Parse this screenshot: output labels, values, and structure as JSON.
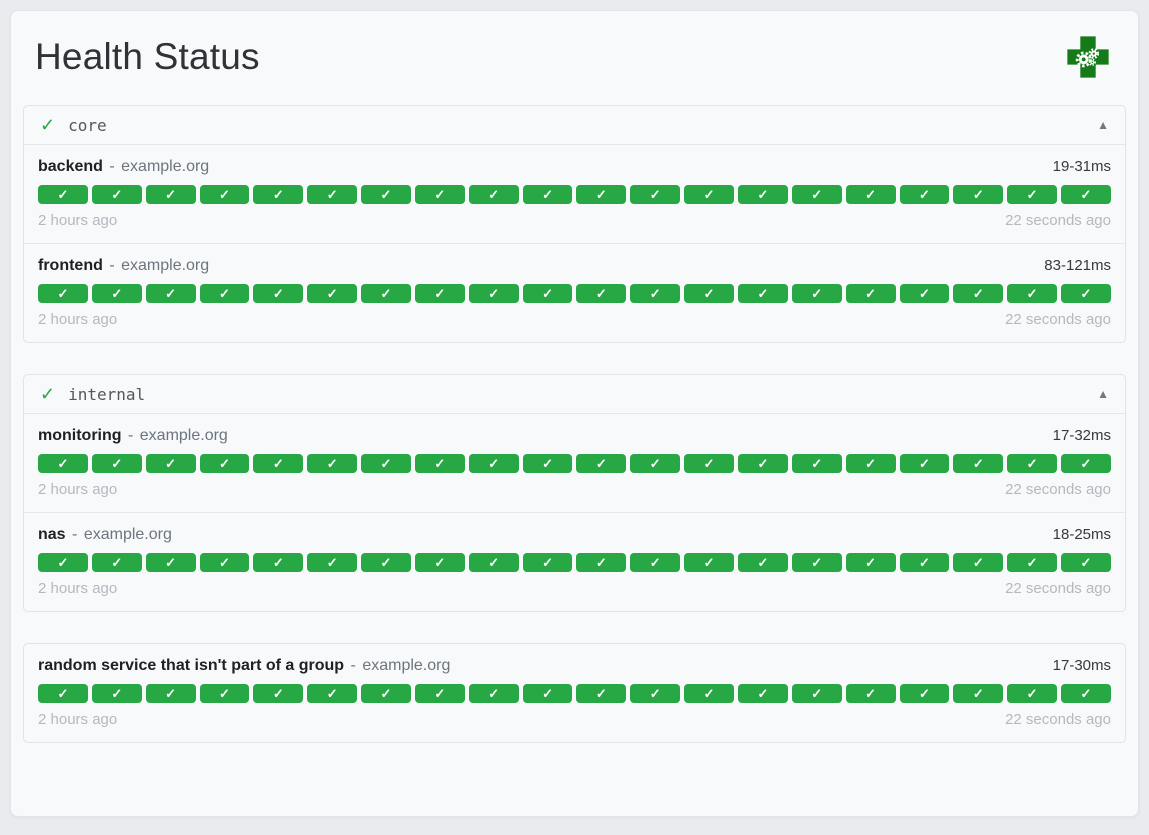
{
  "page": {
    "title": "Health Status"
  },
  "logo": {
    "name": "health-cross-with-gears",
    "color": "#157b19"
  },
  "glyphs": {
    "bar_check": "✓",
    "separator": "-"
  },
  "colors": {
    "success_green": "#28a745",
    "logo_green": "#157b19",
    "page_background": "#e9ebee",
    "card_background": "#f8f9fa",
    "muted_text": "#b3b9c0"
  },
  "groups": [
    {
      "name": "core",
      "status_icon": "✓",
      "collapse_icon": "▲",
      "services": [
        {
          "name": "backend",
          "host": "example.org",
          "response_time": "19-31ms",
          "oldest_result": "2 hours ago",
          "newest_result": "22 seconds ago",
          "checks": 20,
          "check_status": "success"
        },
        {
          "name": "frontend",
          "host": "example.org",
          "response_time": "83-121ms",
          "oldest_result": "2 hours ago",
          "newest_result": "22 seconds ago",
          "checks": 20,
          "check_status": "success"
        }
      ]
    },
    {
      "name": "internal",
      "status_icon": "✓",
      "collapse_icon": "▲",
      "services": [
        {
          "name": "monitoring",
          "host": "example.org",
          "response_time": "17-32ms",
          "oldest_result": "2 hours ago",
          "newest_result": "22 seconds ago",
          "checks": 20,
          "check_status": "success"
        },
        {
          "name": "nas",
          "host": "example.org",
          "response_time": "18-25ms",
          "oldest_result": "2 hours ago",
          "newest_result": "22 seconds ago",
          "checks": 20,
          "check_status": "success"
        }
      ]
    },
    {
      "name": "",
      "status_icon": "",
      "collapse_icon": "",
      "services": [
        {
          "name": "random service that isn't part of a group",
          "host": "example.org",
          "response_time": "17-30ms",
          "oldest_result": "2 hours ago",
          "newest_result": "22 seconds ago",
          "checks": 20,
          "check_status": "success"
        }
      ]
    }
  ]
}
